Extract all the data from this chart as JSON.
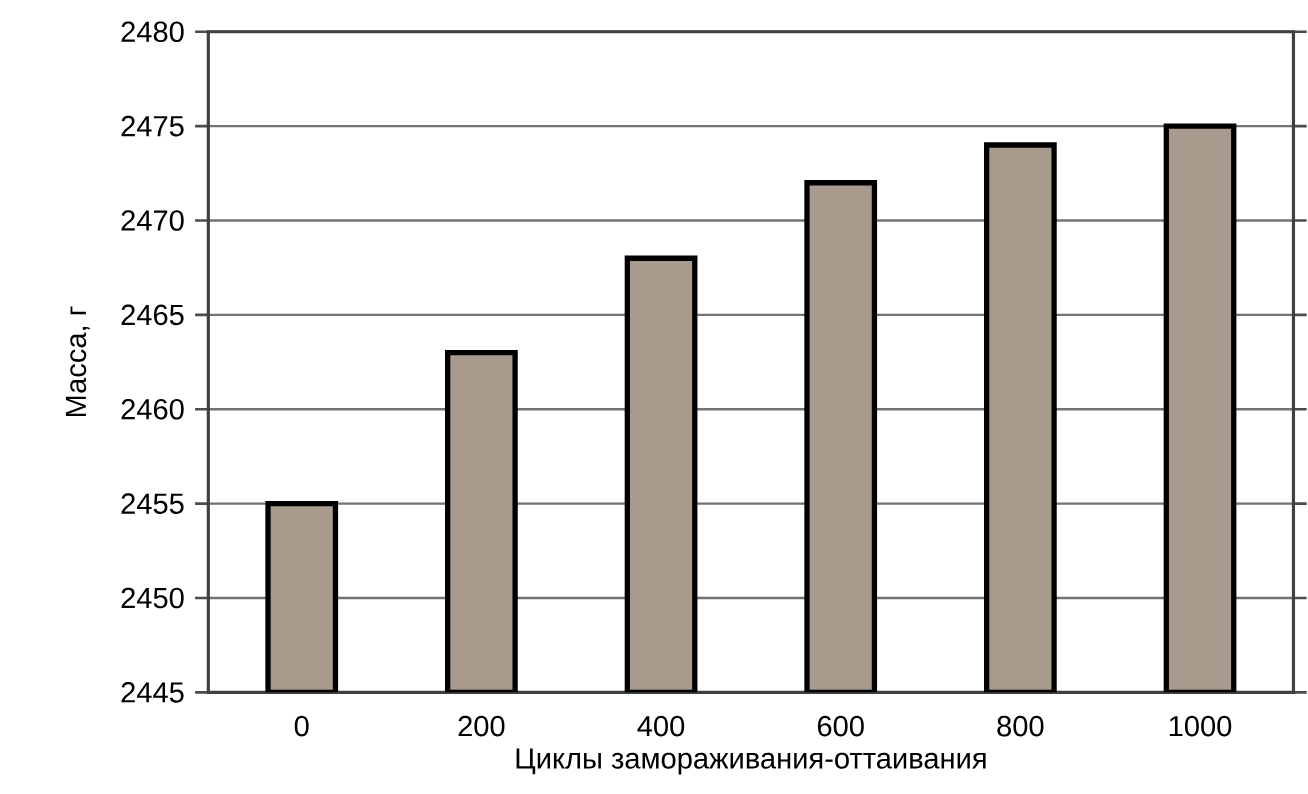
{
  "chart_data": {
    "type": "bar",
    "xlabel": "Циклы замораживания-оттаивания",
    "ylabel": "Масса, г",
    "categories": [
      "0",
      "200",
      "400",
      "600",
      "800",
      "1000"
    ],
    "values": [
      2455,
      2463,
      2468,
      2472,
      2474,
      2475
    ],
    "color": "#a89a8c",
    "ylim": [
      2445,
      2480
    ],
    "yticks": [
      2445,
      2450,
      2455,
      2460,
      2465,
      2470,
      2475,
      2480
    ],
    "grid": "y"
  }
}
